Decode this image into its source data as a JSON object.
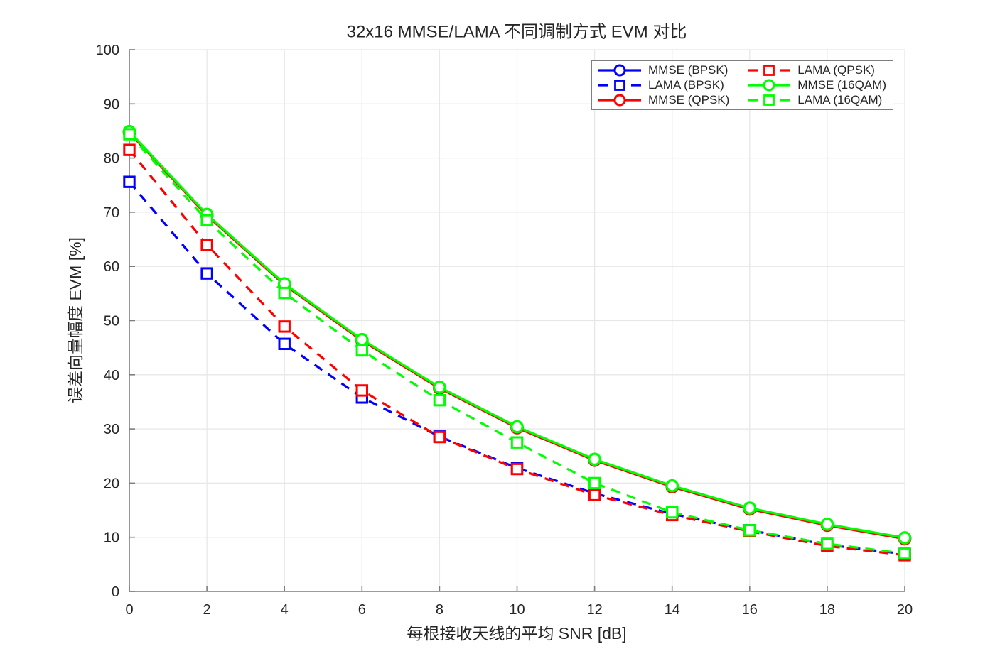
{
  "figure": {
    "kind": "matlab-style line plot"
  },
  "colors": {
    "blue": "#0000ff",
    "red": "#ff0000",
    "green": "#00ff00",
    "axis_line": "#7e7e7e",
    "grid_line": "#e7e7e7",
    "text": "#252525",
    "background": "#ffffff",
    "marker_face": "#ffffff"
  },
  "chart_data": {
    "type": "line",
    "title": "32x16 MMSE/LAMA 不同调制方式 EVM 对比",
    "xlabel": "每根接收天线的平均 SNR [dB]",
    "ylabel": "误差向量幅度 EVM [%]",
    "x": [
      0,
      2,
      4,
      6,
      8,
      10,
      12,
      14,
      16,
      18,
      20
    ],
    "xlim": [
      0,
      20
    ],
    "ylim": [
      0,
      100
    ],
    "xticks": [
      0,
      2,
      4,
      6,
      8,
      10,
      12,
      14,
      16,
      18,
      20
    ],
    "yticks": [
      0,
      10,
      20,
      30,
      40,
      50,
      60,
      70,
      80,
      90,
      100
    ],
    "grid": true,
    "legend_location": "northeast",
    "legend_columns": 2,
    "series": [
      {
        "name": "MMSE (BPSK)",
        "color": "#0000ff",
        "line_style": "solid",
        "marker": "circle",
        "values": [
          84.8,
          69.5,
          56.7,
          46.4,
          37.6,
          30.3,
          24.3,
          19.4,
          15.3,
          12.3,
          9.8
        ]
      },
      {
        "name": "LAMA (BPSK)",
        "color": "#0000ff",
        "line_style": "dashed",
        "marker": "square",
        "values": [
          75.6,
          58.7,
          45.7,
          35.8,
          28.6,
          22.8,
          18.1,
          14.3,
          11.3,
          8.6,
          6.9
        ]
      },
      {
        "name": "MMSE (QPSK)",
        "color": "#ff0000",
        "line_style": "solid",
        "marker": "circle",
        "values": [
          84.7,
          69.4,
          56.6,
          46.3,
          37.5,
          30.2,
          24.2,
          19.3,
          15.2,
          12.2,
          9.7
        ]
      },
      {
        "name": "LAMA (QPSK)",
        "color": "#ff0000",
        "line_style": "dashed",
        "marker": "square",
        "values": [
          81.5,
          64.0,
          48.9,
          37.1,
          28.5,
          22.6,
          17.8,
          14.1,
          11.1,
          8.4,
          6.7
        ]
      },
      {
        "name": "MMSE (16QAM)",
        "color": "#00ff00",
        "line_style": "solid",
        "marker": "circle",
        "values": [
          84.9,
          69.6,
          56.8,
          46.5,
          37.7,
          30.4,
          24.4,
          19.5,
          15.4,
          12.4,
          9.9
        ]
      },
      {
        "name": "LAMA (16QAM)",
        "color": "#00ff00",
        "line_style": "dashed",
        "marker": "square",
        "values": [
          84.4,
          68.5,
          55.1,
          44.5,
          35.3,
          27.5,
          20.0,
          14.6,
          11.3,
          8.8,
          7.0
        ]
      }
    ]
  }
}
